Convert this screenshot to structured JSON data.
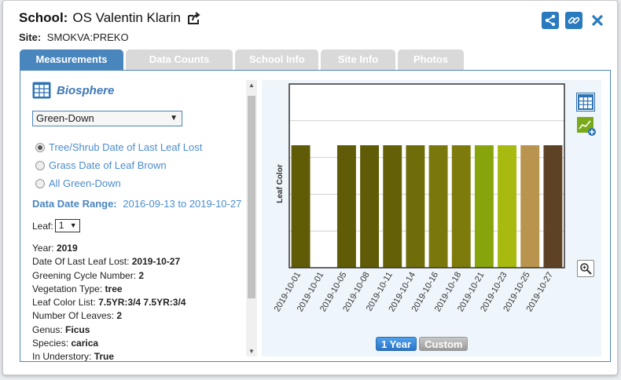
{
  "header": {
    "school_label": "School:",
    "school_name": "OS Valentin Klarin",
    "site_label": "Site:",
    "site_name": "SMOKVA:PREKO"
  },
  "tabs": [
    {
      "label": "Measurements"
    },
    {
      "label": "Data Counts"
    },
    {
      "label": "School Info"
    },
    {
      "label": "Site Info"
    },
    {
      "label": "Photos"
    }
  ],
  "left": {
    "section_title": "Biosphere",
    "protocol_select": "Green-Down",
    "radios": [
      {
        "label": "Tree/Shrub Date of Last Leaf Lost",
        "checked": true
      },
      {
        "label": "Grass Date of Leaf Brown",
        "checked": false
      },
      {
        "label": "All Green-Down",
        "checked": false
      }
    ],
    "range_label": "Data Date Range:",
    "range_value": "2016-09-13 to 2019-10-27",
    "leaf_label": "Leaf:",
    "leaf_value": "1",
    "info": [
      {
        "label": "Year:",
        "value": "2019"
      },
      {
        "label": "Date Of Last Leaf Lost:",
        "value": "2019-10-27"
      },
      {
        "label": "Greening Cycle Number:",
        "value": "2"
      },
      {
        "label": "Vegetation Type:",
        "value": "tree"
      },
      {
        "label": "Leaf Color List:",
        "value": "7.5YR:3/4 7.5YR:3/4"
      },
      {
        "label": "Number Of Leaves:",
        "value": "2"
      },
      {
        "label": "Genus:",
        "value": "Ficus"
      },
      {
        "label": "Species:",
        "value": "carica"
      },
      {
        "label": "In Understory:",
        "value": "True"
      }
    ]
  },
  "chart_data": {
    "type": "bar",
    "ylabel": "Leaf Color",
    "categories": [
      "2019-10-01",
      "2019-10-01",
      "2019-10-05",
      "2019-10-08",
      "2019-10-11",
      "2019-10-14",
      "2019-10-16",
      "2019-10-18",
      "2019-10-21",
      "2019-10-23",
      "2019-10-25",
      "2019-10-27"
    ],
    "values": [
      1,
      0,
      1,
      1,
      1,
      1,
      1,
      1,
      1,
      1,
      1,
      1
    ],
    "colors": [
      "#5f5b06",
      "#ffffff",
      "#5f5b06",
      "#5f5b06",
      "#636008",
      "#6f6c0a",
      "#7a770c",
      "#7d7b0b",
      "#87a40d",
      "#a8b90f",
      "#b8944e",
      "#5e4226"
    ],
    "ylim": [
      0,
      1.5
    ],
    "grid": true
  },
  "buttons": {
    "one_year": "1 Year",
    "custom": "Custom"
  }
}
